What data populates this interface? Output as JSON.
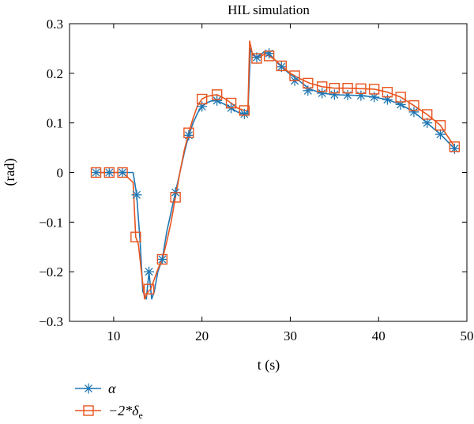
{
  "chart_data": {
    "type": "line",
    "title": "HIL simulation",
    "xlabel": "t (s)",
    "ylabel": "(rad)",
    "xlim": [
      5,
      50
    ],
    "ylim": [
      -0.3,
      0.3
    ],
    "xticks": [
      10,
      20,
      30,
      40,
      50
    ],
    "yticks": [
      -0.3,
      -0.2,
      -0.1,
      0,
      0.1,
      0.2,
      0.3
    ],
    "xtick_labels": [
      "10",
      "20",
      "30",
      "40",
      "50"
    ],
    "ytick_labels": [
      "−0.3",
      "−0.2",
      "−0.1",
      "0",
      "0.1",
      "0.2",
      "0.3"
    ],
    "grid": false,
    "legend_position": "below-left",
    "series": [
      {
        "name": "α",
        "color": "#1f77b4",
        "marker": "asterisk",
        "x": [
          8,
          9.5,
          11,
          12.2,
          12.6,
          13,
          13.3,
          13.7,
          14,
          14.3,
          14.6,
          15,
          15.5,
          16,
          16.5,
          17,
          17.5,
          18,
          18.5,
          19,
          19.5,
          20,
          20.5,
          21,
          21.7,
          22.5,
          23.3,
          24,
          24.8,
          25.2,
          25.5,
          25.8,
          26.2,
          26.6,
          27,
          27.5,
          28.2,
          29,
          30,
          31,
          32.2,
          33.6,
          35,
          36.5,
          38,
          39.5,
          41,
          42.5,
          44,
          45.5,
          47,
          48.6
        ],
        "y": [
          0,
          0,
          0,
          0,
          -0.045,
          -0.14,
          -0.24,
          -0.255,
          -0.2,
          -0.255,
          -0.24,
          -0.2,
          -0.175,
          -0.12,
          -0.08,
          -0.04,
          0,
          0.04,
          0.075,
          0.1,
          0.12,
          0.133,
          0.14,
          0.144,
          0.145,
          0.138,
          0.13,
          0.122,
          0.118,
          0.12,
          0.25,
          0.236,
          0.232,
          0.236,
          0.243,
          0.24,
          0.228,
          0.213,
          0.198,
          0.185,
          0.168,
          0.16,
          0.157,
          0.156,
          0.155,
          0.152,
          0.147,
          0.137,
          0.122,
          0.1,
          0.077,
          0.048
        ],
        "marker_x": [
          8,
          9.5,
          11,
          12.6,
          14,
          15.5,
          17,
          18.5,
          20,
          21.7,
          23.3,
          24.8,
          26.2,
          27.6,
          29,
          30.5,
          32,
          33.6,
          35,
          36.5,
          38,
          39.5,
          41,
          42.5,
          44,
          45.5,
          47,
          48.6
        ],
        "marker_y": [
          0,
          0,
          0,
          -0.045,
          -0.2,
          -0.175,
          -0.04,
          0.075,
          0.133,
          0.145,
          0.13,
          0.118,
          0.232,
          0.24,
          0.213,
          0.185,
          0.165,
          0.16,
          0.157,
          0.156,
          0.155,
          0.152,
          0.147,
          0.137,
          0.122,
          0.1,
          0.077,
          0.048
        ]
      },
      {
        "name": "−2*δe",
        "color": "#e8541f",
        "marker": "square",
        "x": [
          8,
          9.5,
          11,
          12.2,
          12.5,
          12.8,
          13.2,
          13.5,
          13.9,
          14.2,
          14.6,
          15,
          15.5,
          16,
          16.5,
          17,
          17.5,
          18,
          18.5,
          19,
          19.5,
          20,
          20.5,
          21,
          21.7,
          22.5,
          23.3,
          24,
          24.8,
          25.2,
          25.4,
          25.7,
          26.2,
          26.6,
          27,
          27.6,
          28.2,
          29,
          30,
          31,
          32.2,
          33.6,
          35,
          36.5,
          38,
          39.5,
          41,
          42.5,
          44,
          45.5,
          47,
          48.6
        ],
        "y": [
          0,
          0,
          0,
          -0.02,
          -0.13,
          -0.145,
          -0.21,
          -0.255,
          -0.24,
          -0.235,
          -0.215,
          -0.195,
          -0.175,
          -0.14,
          -0.1,
          -0.05,
          0,
          0.045,
          0.08,
          0.11,
          0.135,
          0.148,
          0.153,
          0.155,
          0.157,
          0.15,
          0.14,
          0.13,
          0.125,
          0.125,
          0.265,
          0.24,
          0.23,
          0.233,
          0.238,
          0.235,
          0.228,
          0.215,
          0.2,
          0.19,
          0.18,
          0.173,
          0.17,
          0.17,
          0.169,
          0.168,
          0.162,
          0.152,
          0.135,
          0.117,
          0.095,
          0.052
        ],
        "marker_x": [
          8,
          9.5,
          11,
          12.5,
          14,
          15.5,
          17,
          18.5,
          20,
          21.7,
          23.3,
          24.8,
          26.2,
          27.6,
          29,
          30.5,
          32,
          33.6,
          35,
          36.5,
          38,
          39.5,
          41,
          42.5,
          44,
          45.5,
          47,
          48.6
        ],
        "marker_y": [
          0,
          0,
          0,
          -0.13,
          -0.235,
          -0.175,
          -0.05,
          0.08,
          0.148,
          0.157,
          0.14,
          0.125,
          0.23,
          0.235,
          0.215,
          0.195,
          0.18,
          0.173,
          0.17,
          0.17,
          0.169,
          0.168,
          0.162,
          0.152,
          0.135,
          0.117,
          0.095,
          0.052
        ]
      }
    ],
    "legend": [
      {
        "label": "α"
      },
      {
        "label_main": "−2*δ",
        "label_sub": "e"
      }
    ]
  }
}
